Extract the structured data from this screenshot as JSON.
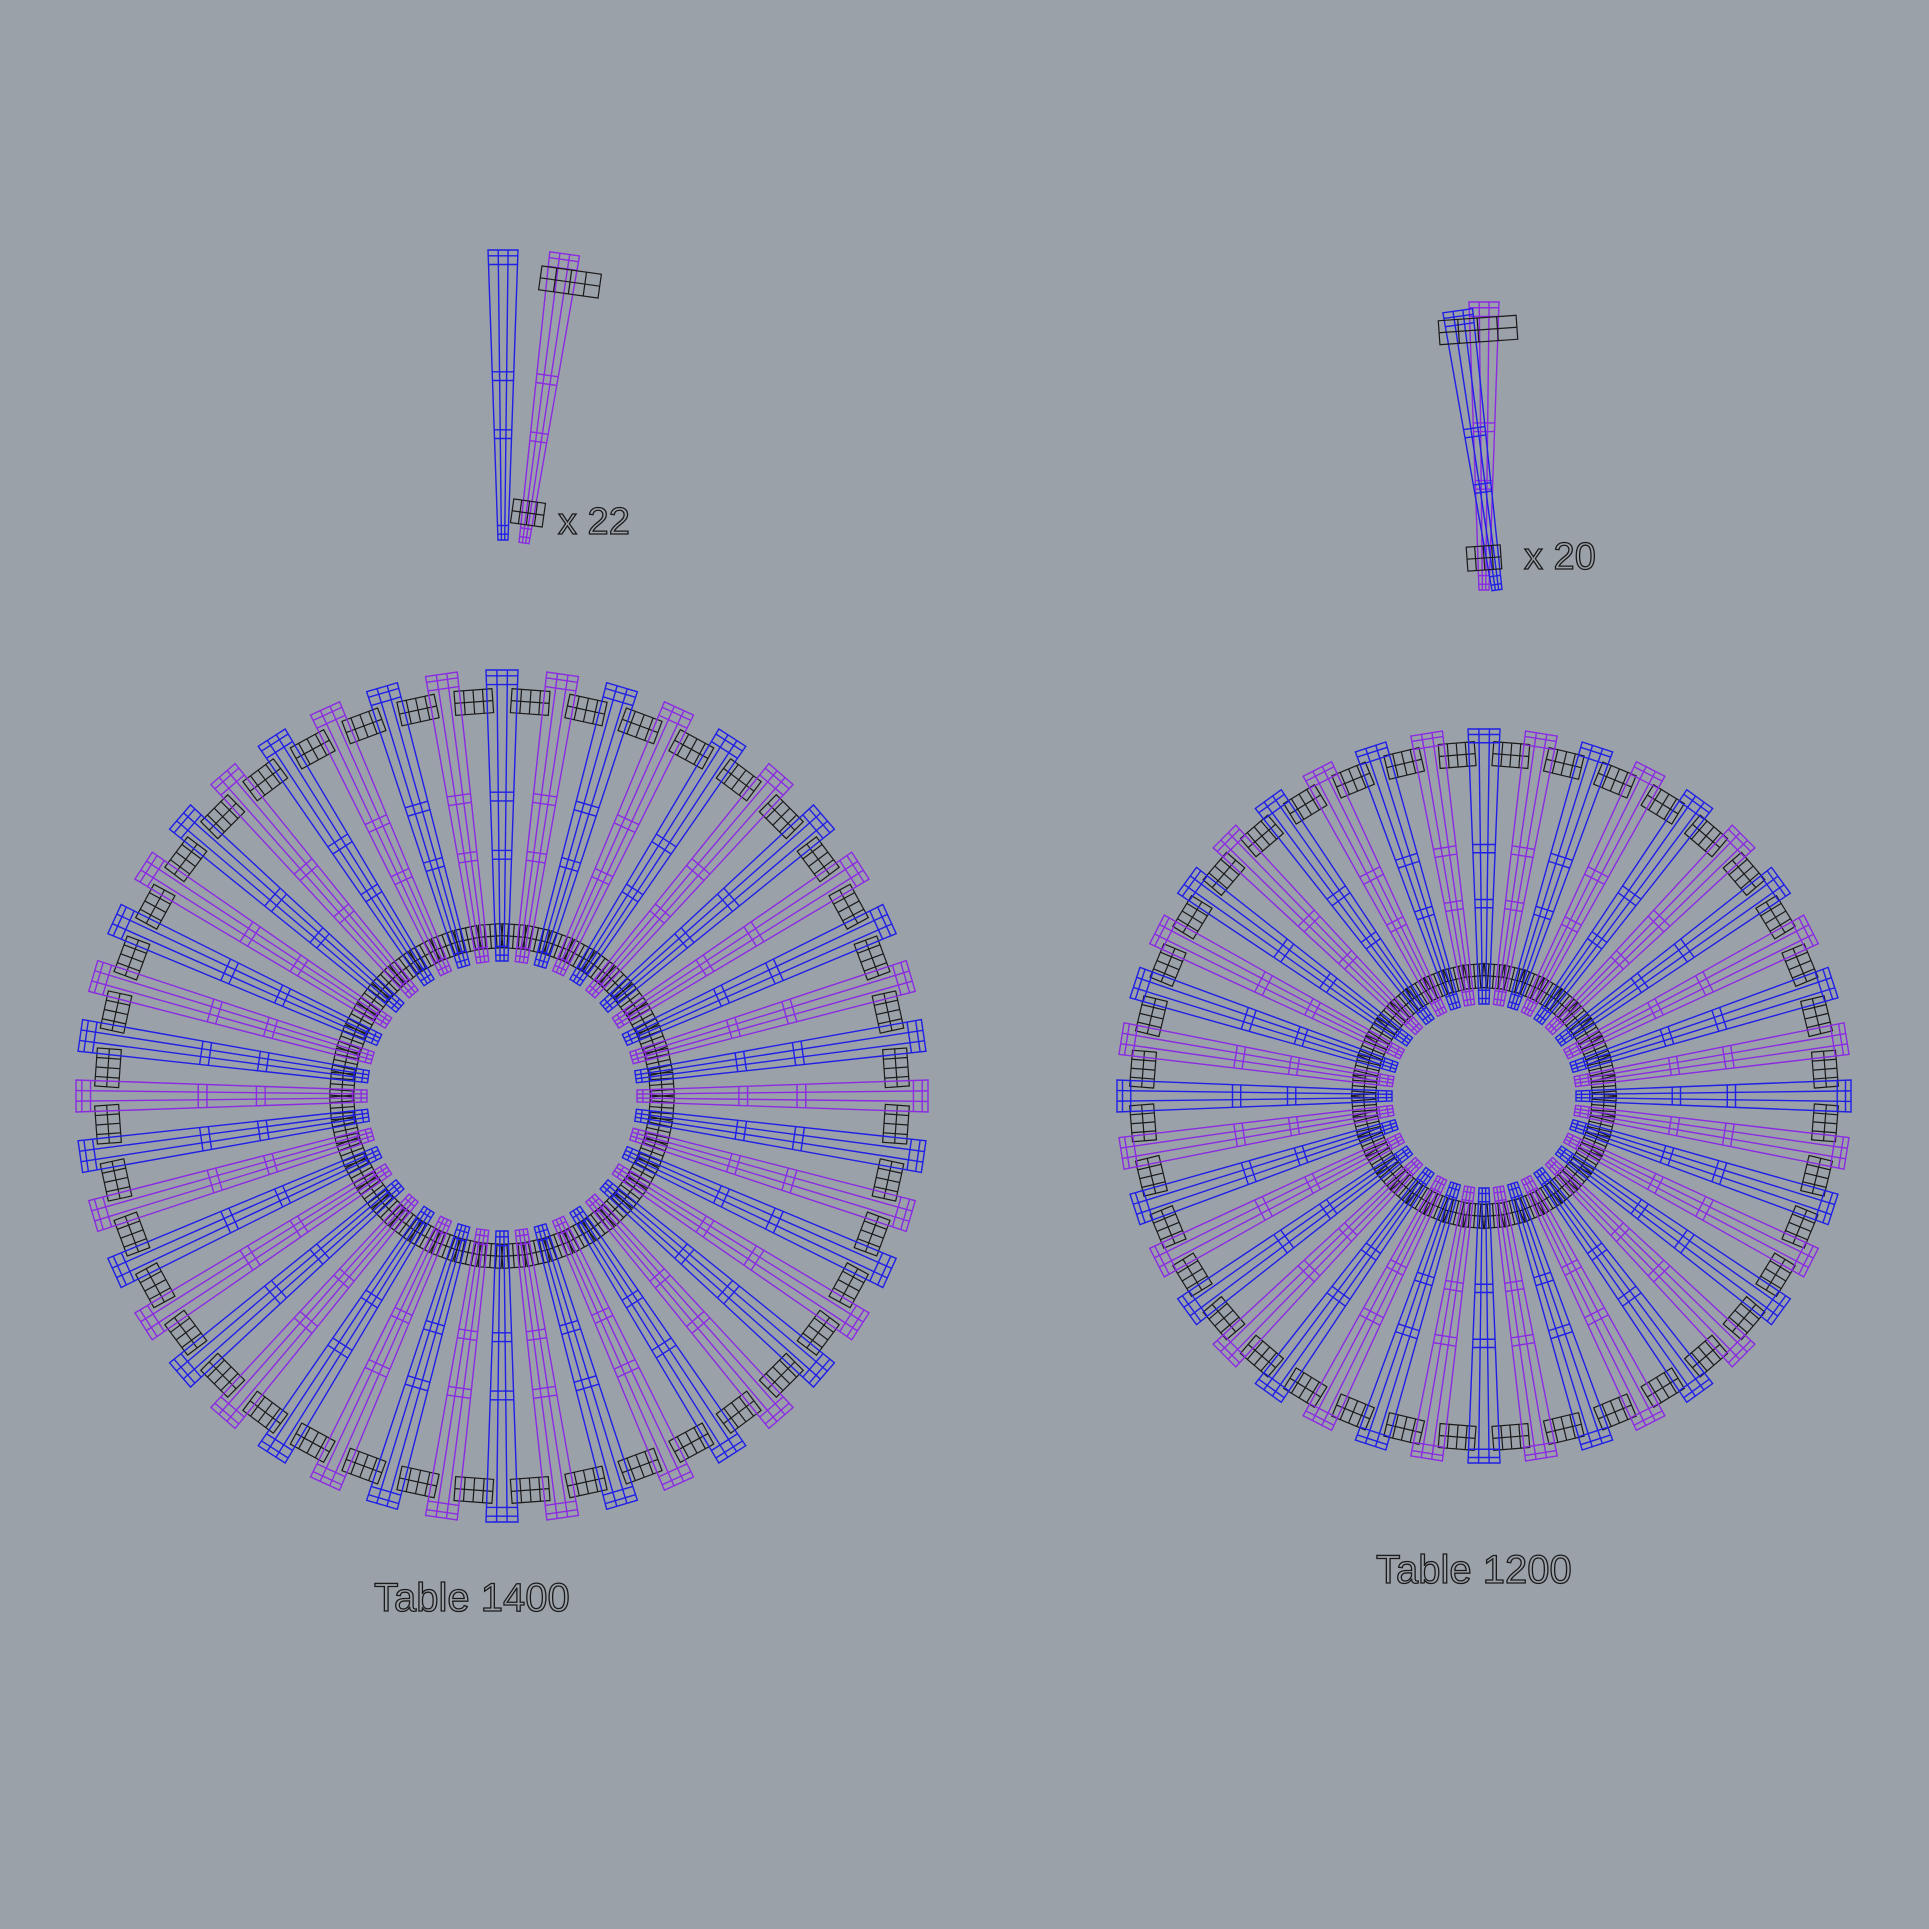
{
  "colors": {
    "background": "#9ba1a9",
    "blade_a": "#1f1fe6",
    "blade_b": "#8a2be2",
    "block": "#1a1a1a"
  },
  "module_counts": {
    "left": "x 22",
    "right": "x 20"
  },
  "tables": [
    {
      "title": "Table 1400",
      "modules": 22,
      "blades": 44
    },
    {
      "title": "Table 1200",
      "modules": 20,
      "blades": 40
    }
  ]
}
